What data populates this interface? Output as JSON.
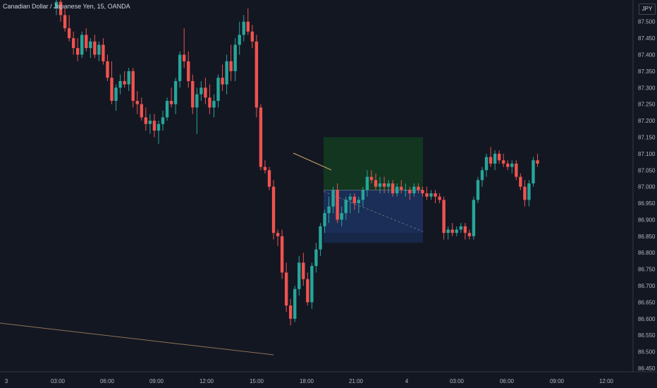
{
  "header": {
    "instrument": "Canadian Dollar / Japanese Yen",
    "interval": "15",
    "broker": "OANDA",
    "separator": ", ",
    "currency_badge": "JPY"
  },
  "colors": {
    "background": "#131722",
    "up": "#26a69a",
    "down": "#ef5350",
    "grid_text": "#b2b5be",
    "axis_line": "#363a45",
    "target_zone": "#133a20",
    "stop_zone": "#17294d",
    "trend_line": "#8b7355"
  },
  "chart_data": {
    "type": "candlestick",
    "title": "Canadian Dollar / Japanese Yen, 15, OANDA",
    "ylim": [
      86.45,
      87.54
    ],
    "y_ticks": [
      "87.500",
      "87.450",
      "87.400",
      "87.350",
      "87.300",
      "87.250",
      "87.200",
      "87.150",
      "87.100",
      "87.050",
      "87.000",
      "86.950",
      "86.900",
      "86.850",
      "86.800",
      "86.750",
      "86.700",
      "86.650",
      "86.600",
      "86.550",
      "86.500",
      "86.450"
    ],
    "x_ticks": [
      "3",
      "03:00",
      "06:00",
      "09:00",
      "12:00",
      "15:00",
      "18:00",
      "21:00",
      "4",
      "03:00",
      "06:00",
      "09:00",
      "12:00"
    ],
    "grid": false,
    "candles": [
      [
        87.54,
        87.58,
        87.52,
        87.56
      ],
      [
        87.56,
        87.58,
        87.5,
        87.52
      ],
      [
        87.52,
        87.54,
        87.47,
        87.48
      ],
      [
        87.48,
        87.52,
        87.44,
        87.45
      ],
      [
        87.45,
        87.47,
        87.4,
        87.42
      ],
      [
        87.42,
        87.45,
        87.38,
        87.4
      ],
      [
        87.4,
        87.47,
        87.39,
        87.46
      ],
      [
        87.46,
        87.48,
        87.41,
        87.42
      ],
      [
        87.42,
        87.45,
        87.39,
        87.44
      ],
      [
        87.44,
        87.46,
        87.39,
        87.4
      ],
      [
        87.4,
        87.44,
        87.38,
        87.43
      ],
      [
        87.43,
        87.45,
        87.37,
        87.38
      ],
      [
        87.38,
        87.4,
        87.32,
        87.33
      ],
      [
        87.33,
        87.38,
        87.25,
        87.26
      ],
      [
        87.26,
        87.31,
        87.23,
        87.3
      ],
      [
        87.3,
        87.34,
        87.28,
        87.32
      ],
      [
        87.32,
        87.35,
        87.3,
        87.31
      ],
      [
        87.31,
        87.36,
        87.29,
        87.35
      ],
      [
        87.35,
        87.36,
        87.24,
        87.26
      ],
      [
        87.26,
        87.29,
        87.22,
        87.25
      ],
      [
        87.25,
        87.27,
        87.2,
        87.21
      ],
      [
        87.21,
        87.24,
        87.17,
        87.19
      ],
      [
        87.19,
        87.22,
        87.16,
        87.2
      ],
      [
        87.2,
        87.22,
        87.15,
        87.17
      ],
      [
        87.17,
        87.2,
        87.13,
        87.19
      ],
      [
        87.19,
        87.23,
        87.17,
        87.21
      ],
      [
        87.21,
        87.27,
        87.2,
        87.26
      ],
      [
        87.26,
        87.3,
        87.24,
        87.25
      ],
      [
        87.25,
        87.33,
        87.22,
        87.32
      ],
      [
        87.32,
        87.41,
        87.3,
        87.4
      ],
      [
        87.4,
        87.48,
        87.36,
        87.38
      ],
      [
        87.38,
        87.41,
        87.3,
        87.32
      ],
      [
        87.32,
        87.34,
        87.22,
        87.24
      ],
      [
        87.24,
        87.3,
        87.16,
        87.28
      ],
      [
        87.28,
        87.32,
        87.26,
        87.3
      ],
      [
        87.3,
        87.33,
        87.25,
        87.27
      ],
      [
        87.27,
        87.31,
        87.22,
        87.24
      ],
      [
        87.24,
        87.28,
        87.21,
        87.26
      ],
      [
        87.26,
        87.34,
        87.24,
        87.33
      ],
      [
        87.33,
        87.37,
        87.29,
        87.31
      ],
      [
        87.31,
        87.4,
        87.28,
        87.38
      ],
      [
        87.38,
        87.43,
        87.32,
        87.35
      ],
      [
        87.35,
        87.45,
        87.32,
        87.43
      ],
      [
        87.43,
        87.5,
        87.4,
        87.46
      ],
      [
        87.46,
        87.52,
        87.44,
        87.5
      ],
      [
        87.5,
        87.54,
        87.46,
        87.47
      ],
      [
        87.47,
        87.49,
        87.42,
        87.44
      ],
      [
        87.44,
        87.46,
        87.21,
        87.24
      ],
      [
        87.24,
        87.25,
        87.05,
        87.06
      ],
      [
        87.06,
        87.08,
        87.04,
        87.05
      ],
      [
        87.05,
        87.06,
        86.99,
        87.0
      ],
      [
        87.0,
        87.02,
        86.84,
        86.86
      ],
      [
        86.86,
        86.87,
        86.82,
        86.85
      ],
      [
        86.85,
        86.87,
        86.72,
        86.74
      ],
      [
        86.74,
        86.77,
        86.62,
        86.64
      ],
      [
        86.64,
        86.66,
        86.58,
        86.6
      ],
      [
        86.6,
        86.7,
        86.59,
        86.69
      ],
      [
        86.69,
        86.79,
        86.67,
        86.77
      ],
      [
        86.77,
        86.8,
        86.7,
        86.72
      ],
      [
        86.72,
        86.74,
        86.64,
        86.65
      ],
      [
        86.65,
        86.77,
        86.63,
        86.76
      ],
      [
        86.76,
        86.83,
        86.74,
        86.81
      ],
      [
        86.81,
        86.89,
        86.79,
        86.88
      ],
      [
        86.88,
        86.93,
        86.86,
        86.92
      ],
      [
        86.92,
        86.97,
        86.89,
        86.94
      ],
      [
        86.94,
        87.0,
        86.92,
        86.99
      ],
      [
        86.99,
        87.01,
        86.89,
        86.9
      ],
      [
        86.9,
        86.94,
        86.88,
        86.92
      ],
      [
        86.92,
        86.97,
        86.9,
        86.96
      ],
      [
        86.96,
        86.98,
        86.92,
        86.97
      ],
      [
        86.97,
        86.98,
        86.93,
        86.95
      ],
      [
        86.95,
        86.97,
        86.92,
        86.96
      ],
      [
        86.96,
        87.0,
        86.94,
        86.99
      ],
      [
        86.99,
        87.05,
        86.97,
        87.03
      ],
      [
        87.03,
        87.05,
        87.01,
        87.02
      ],
      [
        87.02,
        87.04,
        86.99,
        87.0
      ],
      [
        87.0,
        87.03,
        86.98,
        87.01
      ],
      [
        87.01,
        87.03,
        86.98,
        87.0
      ],
      [
        87.0,
        87.02,
        86.98,
        87.01
      ],
      [
        87.01,
        87.02,
        86.97,
        86.98
      ],
      [
        86.98,
        87.01,
        86.97,
        87.0
      ],
      [
        87.0,
        87.02,
        86.98,
        86.99
      ],
      [
        86.99,
        87.01,
        86.97,
        86.99
      ],
      [
        86.99,
        87.0,
        86.96,
        86.98
      ],
      [
        86.98,
        87.01,
        86.97,
        87.0
      ],
      [
        87.0,
        87.01,
        86.98,
        86.99
      ],
      [
        86.99,
        87.0,
        86.97,
        86.98
      ],
      [
        86.98,
        87.0,
        86.96,
        86.97
      ],
      [
        86.97,
        86.99,
        86.96,
        86.98
      ],
      [
        86.98,
        86.99,
        86.95,
        86.97
      ],
      [
        86.97,
        86.98,
        86.95,
        86.96
      ],
      [
        86.96,
        86.97,
        86.84,
        86.86
      ],
      [
        86.86,
        86.88,
        86.84,
        86.87
      ],
      [
        86.87,
        86.89,
        86.85,
        86.86
      ],
      [
        86.86,
        86.88,
        86.85,
        86.87
      ],
      [
        86.87,
        86.89,
        86.86,
        86.88
      ],
      [
        86.88,
        86.89,
        86.84,
        86.86
      ],
      [
        86.86,
        86.87,
        86.84,
        86.85
      ],
      [
        86.85,
        86.97,
        86.84,
        86.96
      ],
      [
        86.96,
        87.03,
        86.95,
        87.02
      ],
      [
        87.02,
        87.06,
        87.0,
        87.05
      ],
      [
        87.05,
        87.1,
        87.03,
        87.09
      ],
      [
        87.09,
        87.12,
        87.06,
        87.07
      ],
      [
        87.07,
        87.11,
        87.05,
        87.1
      ],
      [
        87.1,
        87.11,
        87.07,
        87.08
      ],
      [
        87.08,
        87.1,
        87.06,
        87.07
      ],
      [
        87.07,
        87.08,
        87.05,
        87.06
      ],
      [
        87.06,
        87.08,
        87.04,
        87.07
      ],
      [
        87.07,
        87.08,
        87.02,
        87.03
      ],
      [
        87.03,
        87.04,
        86.99,
        87.0
      ],
      [
        87.0,
        87.02,
        86.94,
        86.96
      ],
      [
        86.96,
        87.02,
        86.94,
        87.01
      ],
      [
        87.01,
        87.09,
        87.0,
        87.08
      ],
      [
        87.08,
        87.1,
        87.06,
        87.07
      ]
    ],
    "position": {
      "entry": 86.99,
      "target": 87.15,
      "stop": 86.83,
      "exit": 86.86
    }
  }
}
